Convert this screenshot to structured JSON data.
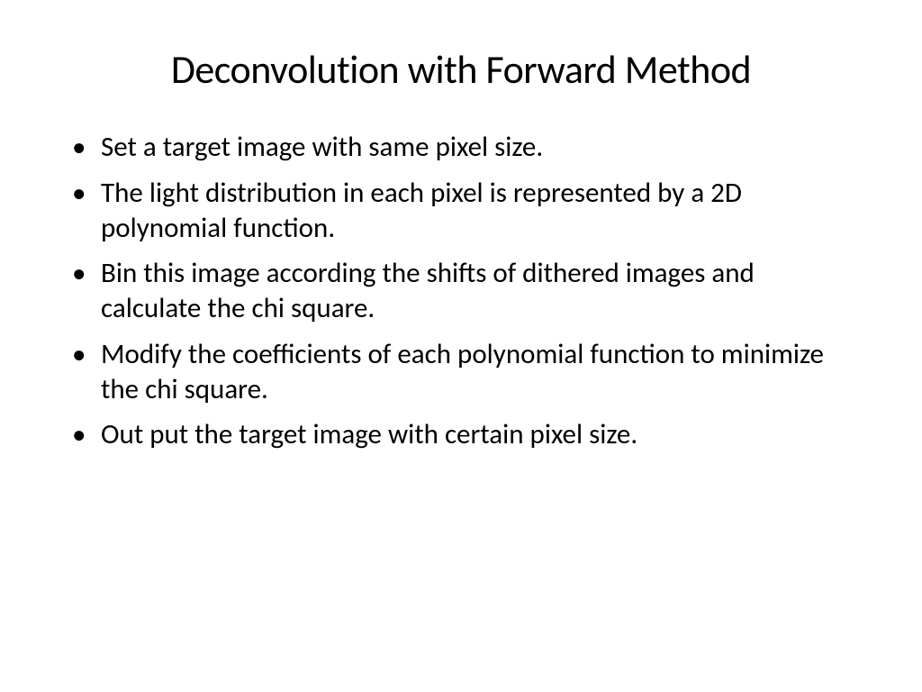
{
  "slide": {
    "title": "Deconvolution with Forward Method",
    "title_fontsize": 44,
    "bullet_fontsize": 31,
    "text_color": "#000000",
    "background_color": "#ffffff",
    "bullets": [
      "Set a target image with same pixel size.",
      "The light distribution in each pixel is represented by a 2D polynomial function.",
      " Bin this image according the shifts of dithered images and calculate the chi square.",
      "Modify the coefficients of each polynomial function to minimize the chi square.",
      "Out put the target image with certain pixel size."
    ]
  }
}
